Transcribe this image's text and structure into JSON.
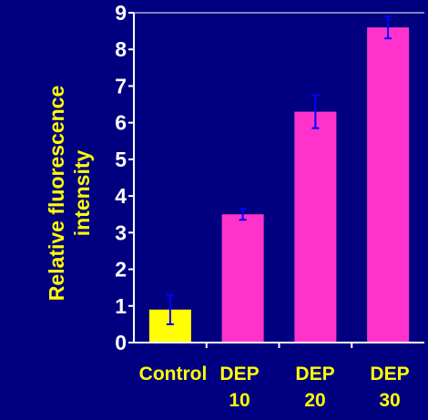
{
  "chart_data": {
    "type": "bar",
    "categories": [
      [
        "Control"
      ],
      [
        "DEP",
        "10"
      ],
      [
        "DEP",
        "20"
      ],
      [
        "DEP",
        "30"
      ]
    ],
    "values": [
      0.9,
      3.5,
      6.3,
      8.6
    ],
    "errors": [
      0.4,
      0.15,
      0.45,
      0.3
    ],
    "bar_colors": [
      "#ffff00",
      "#ff33cc",
      "#ff33cc",
      "#ff33cc"
    ],
    "error_color": "#0000ff",
    "ylabel_lines": [
      "Relative fluorescence",
      "intensity"
    ],
    "ylim": [
      0,
      9
    ],
    "yticks": [
      0,
      1,
      2,
      3,
      4,
      5,
      6,
      7,
      8,
      9
    ],
    "background": "#000080",
    "axis_color": "#ffffff",
    "text_color": "#ffffff",
    "label_color": "#ffff00",
    "grid": false
  }
}
